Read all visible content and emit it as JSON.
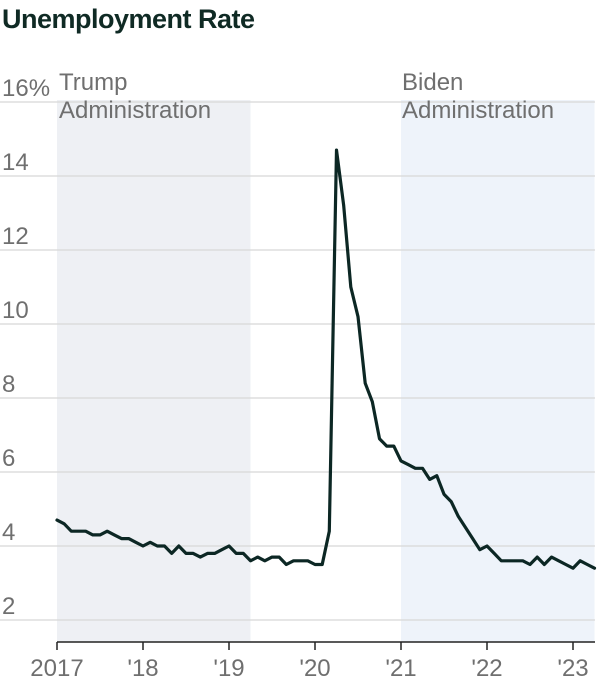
{
  "header": {
    "title": "Unemployment Rate"
  },
  "colors": {
    "line": "#0c2724",
    "grid": "#d8d8d8",
    "trump_shade": "#eef0f4",
    "biden_shade": "#eef3fa",
    "tick_text": "#6f6f6f"
  },
  "chart_data": {
    "type": "line",
    "title": "Unemployment Rate",
    "xlabel": "",
    "ylabel": "",
    "ylim": [
      2,
      16
    ],
    "xlim": [
      "2017-01",
      "2023-04"
    ],
    "y_ticks": [
      2,
      4,
      6,
      8,
      10,
      12,
      14,
      16
    ],
    "y_tick_labels": [
      "2",
      "4",
      "6",
      "8",
      "10",
      "12",
      "14",
      "16%"
    ],
    "x_ticks": [
      "2017-01",
      "2018-01",
      "2019-01",
      "2020-01",
      "2021-01",
      "2022-01",
      "2023-01"
    ],
    "x_tick_labels": [
      "2017",
      "'18",
      "'19",
      "'20",
      "'21",
      "'22",
      "'23"
    ],
    "grid": true,
    "shaded_regions": [
      {
        "label": "Trump Administration",
        "label_lines": [
          "Trump",
          "Administration"
        ],
        "start": "2017-01",
        "end": "2019-04",
        "color": "#eef0f4"
      },
      {
        "label": "Biden Administration",
        "label_lines": [
          "Biden",
          "Administration"
        ],
        "start": "2021-01",
        "end": "2023-04",
        "color": "#eef3fa"
      }
    ],
    "series": [
      {
        "x": [
          "2017-01",
          "2017-02",
          "2017-03",
          "2017-04",
          "2017-05",
          "2017-06",
          "2017-07",
          "2017-08",
          "2017-09",
          "2017-10",
          "2017-11",
          "2017-12",
          "2018-01",
          "2018-02",
          "2018-03",
          "2018-04",
          "2018-05",
          "2018-06",
          "2018-07",
          "2018-08",
          "2018-09",
          "2018-10",
          "2018-11",
          "2018-12",
          "2019-01",
          "2019-02",
          "2019-03",
          "2019-04",
          "2019-05",
          "2019-06",
          "2019-07",
          "2019-08",
          "2019-09",
          "2019-10",
          "2019-11",
          "2019-12",
          "2020-01",
          "2020-02",
          "2020-03",
          "2020-04",
          "2020-05",
          "2020-06",
          "2020-07",
          "2020-08",
          "2020-09",
          "2020-10",
          "2020-11",
          "2020-12",
          "2021-01",
          "2021-02",
          "2021-03",
          "2021-04",
          "2021-05",
          "2021-06",
          "2021-07",
          "2021-08",
          "2021-09",
          "2021-10",
          "2021-11",
          "2021-12",
          "2022-01",
          "2022-02",
          "2022-03",
          "2022-04",
          "2022-05",
          "2022-06",
          "2022-07",
          "2022-08",
          "2022-09",
          "2022-10",
          "2022-11",
          "2022-12",
          "2023-01",
          "2023-02",
          "2023-03",
          "2023-04"
        ],
        "values": [
          4.7,
          4.6,
          4.4,
          4.4,
          4.4,
          4.3,
          4.3,
          4.4,
          4.3,
          4.2,
          4.2,
          4.1,
          4.0,
          4.1,
          4.0,
          4.0,
          3.8,
          4.0,
          3.8,
          3.8,
          3.7,
          3.8,
          3.8,
          3.9,
          4.0,
          3.8,
          3.8,
          3.6,
          3.7,
          3.6,
          3.7,
          3.7,
          3.5,
          3.6,
          3.6,
          3.6,
          3.5,
          3.5,
          4.4,
          14.7,
          13.2,
          11.0,
          10.2,
          8.4,
          7.9,
          6.9,
          6.7,
          6.7,
          6.3,
          6.2,
          6.1,
          6.1,
          5.8,
          5.9,
          5.4,
          5.2,
          4.8,
          4.5,
          4.2,
          3.9,
          4.0,
          3.8,
          3.6,
          3.6,
          3.6,
          3.6,
          3.5,
          3.7,
          3.5,
          3.7,
          3.6,
          3.5,
          3.4,
          3.6,
          3.5,
          3.4
        ]
      }
    ]
  }
}
